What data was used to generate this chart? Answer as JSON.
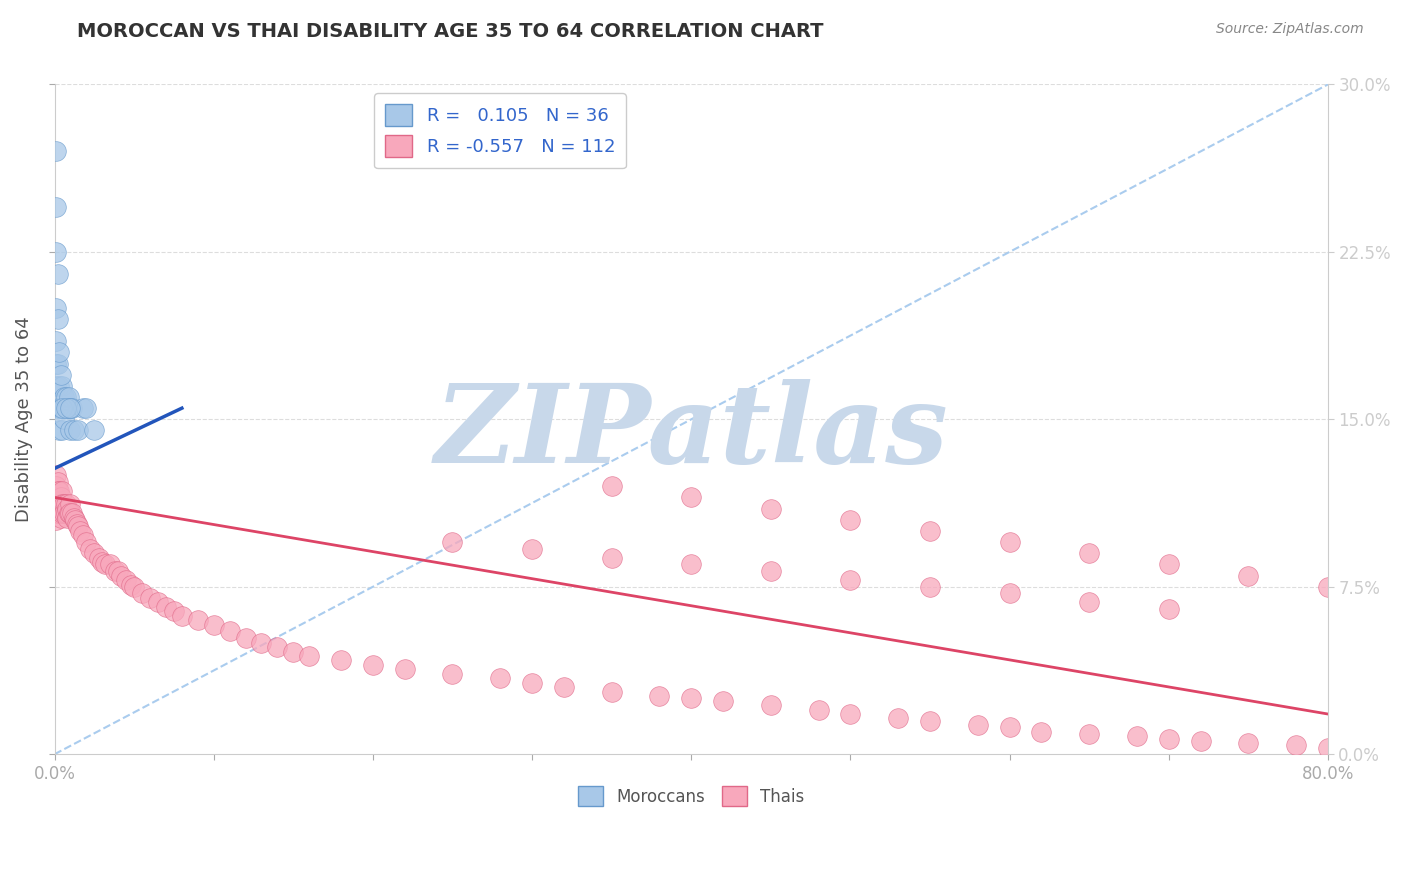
{
  "title": "MOROCCAN VS THAI DISABILITY AGE 35 TO 64 CORRELATION CHART",
  "source_text": "Source: ZipAtlas.com",
  "ylabel": "Disability Age 35 to 64",
  "xlim": [
    0.0,
    0.8
  ],
  "ylim": [
    0.0,
    0.3
  ],
  "xticks": [
    0.0,
    0.1,
    0.2,
    0.3,
    0.4,
    0.5,
    0.6,
    0.7,
    0.8
  ],
  "xticklabels": [
    "0.0%",
    "",
    "",
    "",
    "",
    "",
    "",
    "",
    "80.0%"
  ],
  "yticks": [
    0.0,
    0.075,
    0.15,
    0.225,
    0.3
  ],
  "yticklabels_right": [
    "0.0%",
    "7.5%",
    "15.0%",
    "22.5%",
    "30.0%"
  ],
  "moroccan_color": "#a8c8e8",
  "thai_color": "#f8a8bc",
  "moroccan_edge": "#6699cc",
  "thai_edge": "#e06888",
  "blue_line_color": "#2255bb",
  "pink_line_color": "#dd4466",
  "diag_line_color": "#aaccee",
  "watermark_color": "#c8d8ea",
  "moroccan_x": [
    0.001,
    0.001,
    0.001,
    0.001,
    0.001,
    0.001,
    0.001,
    0.002,
    0.002,
    0.002,
    0.003,
    0.003,
    0.003,
    0.004,
    0.005,
    0.005,
    0.005,
    0.006,
    0.006,
    0.007,
    0.008,
    0.009,
    0.01,
    0.01,
    0.011,
    0.012,
    0.015,
    0.018,
    0.02,
    0.025,
    0.002,
    0.003,
    0.004,
    0.005,
    0.007,
    0.01
  ],
  "moroccan_y": [
    0.27,
    0.245,
    0.225,
    0.2,
    0.185,
    0.175,
    0.165,
    0.195,
    0.175,
    0.155,
    0.165,
    0.155,
    0.145,
    0.155,
    0.165,
    0.155,
    0.145,
    0.16,
    0.15,
    0.16,
    0.155,
    0.16,
    0.155,
    0.145,
    0.155,
    0.145,
    0.145,
    0.155,
    0.155,
    0.145,
    0.215,
    0.18,
    0.17,
    0.155,
    0.155,
    0.155
  ],
  "thai_x": [
    0.001,
    0.001,
    0.001,
    0.001,
    0.001,
    0.001,
    0.002,
    0.002,
    0.002,
    0.002,
    0.003,
    0.003,
    0.003,
    0.004,
    0.004,
    0.004,
    0.005,
    0.005,
    0.005,
    0.006,
    0.006,
    0.007,
    0.007,
    0.008,
    0.008,
    0.009,
    0.01,
    0.01,
    0.011,
    0.012,
    0.013,
    0.014,
    0.015,
    0.016,
    0.018,
    0.02,
    0.022,
    0.025,
    0.028,
    0.03,
    0.032,
    0.035,
    0.038,
    0.04,
    0.042,
    0.045,
    0.048,
    0.05,
    0.055,
    0.06,
    0.065,
    0.07,
    0.075,
    0.08,
    0.09,
    0.1,
    0.11,
    0.12,
    0.13,
    0.14,
    0.15,
    0.16,
    0.18,
    0.2,
    0.22,
    0.25,
    0.28,
    0.3,
    0.32,
    0.35,
    0.38,
    0.4,
    0.42,
    0.45,
    0.48,
    0.5,
    0.53,
    0.55,
    0.58,
    0.6,
    0.62,
    0.65,
    0.68,
    0.7,
    0.72,
    0.75,
    0.78,
    0.8,
    0.35,
    0.4,
    0.45,
    0.5,
    0.55,
    0.6,
    0.65,
    0.7,
    0.75,
    0.8,
    0.25,
    0.3,
    0.35,
    0.4,
    0.45,
    0.5,
    0.55,
    0.6,
    0.65,
    0.7
  ],
  "thai_y": [
    0.125,
    0.12,
    0.115,
    0.11,
    0.108,
    0.105,
    0.122,
    0.118,
    0.112,
    0.108,
    0.118,
    0.112,
    0.108,
    0.115,
    0.11,
    0.106,
    0.118,
    0.112,
    0.108,
    0.112,
    0.108,
    0.112,
    0.108,
    0.11,
    0.106,
    0.108,
    0.112,
    0.108,
    0.108,
    0.106,
    0.105,
    0.103,
    0.102,
    0.1,
    0.098,
    0.095,
    0.092,
    0.09,
    0.088,
    0.086,
    0.085,
    0.085,
    0.082,
    0.082,
    0.08,
    0.078,
    0.076,
    0.075,
    0.072,
    0.07,
    0.068,
    0.066,
    0.064,
    0.062,
    0.06,
    0.058,
    0.055,
    0.052,
    0.05,
    0.048,
    0.046,
    0.044,
    0.042,
    0.04,
    0.038,
    0.036,
    0.034,
    0.032,
    0.03,
    0.028,
    0.026,
    0.025,
    0.024,
    0.022,
    0.02,
    0.018,
    0.016,
    0.015,
    0.013,
    0.012,
    0.01,
    0.009,
    0.008,
    0.007,
    0.006,
    0.005,
    0.004,
    0.003,
    0.12,
    0.115,
    0.11,
    0.105,
    0.1,
    0.095,
    0.09,
    0.085,
    0.08,
    0.075,
    0.095,
    0.092,
    0.088,
    0.085,
    0.082,
    0.078,
    0.075,
    0.072,
    0.068,
    0.065
  ],
  "blue_line_x": [
    0.0,
    0.08
  ],
  "blue_line_y": [
    0.128,
    0.155
  ],
  "pink_line_x": [
    0.0,
    0.8
  ],
  "pink_line_y": [
    0.115,
    0.018
  ],
  "diag_line_x": [
    0.0,
    0.8
  ],
  "diag_line_y": [
    0.0,
    0.3
  ]
}
